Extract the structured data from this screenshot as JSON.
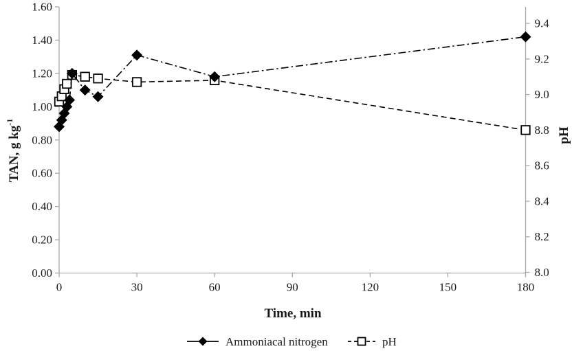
{
  "figure": {
    "background_color": "#ffffff",
    "text_color": "#1a1a1a",
    "axis_line_color": "#a8a8a8",
    "series_color": "#000000"
  },
  "chart_data": {
    "type": "line",
    "title": "",
    "grid": false,
    "legend_position": "bottom-center",
    "x_axis": {
      "label": "Time, min",
      "range": [
        0,
        180
      ],
      "ticks": [
        0,
        30,
        60,
        90,
        120,
        150,
        180
      ]
    },
    "y_left_axis": {
      "label": "TAN, g kg",
      "label_superscript": "-1",
      "range": [
        0,
        1.6
      ],
      "ticks": [
        "0.00",
        "0.20",
        "0.40",
        "0.60",
        "0.80",
        "1.00",
        "1.20",
        "1.40",
        "1.60"
      ]
    },
    "y_right_axis": {
      "label": "pH",
      "range": [
        8.0,
        9.4
      ],
      "ticks": [
        "8.0",
        "8.2",
        "8.4",
        "8.6",
        "8.8",
        "9.0",
        "9.2",
        "9.4"
      ]
    },
    "series": [
      {
        "name": "Ammoniacal nitrogen",
        "axis": "left",
        "marker": "filled-diamond",
        "line_style": "dash-dot",
        "color": "#000000",
        "x": [
          0,
          1,
          2,
          3,
          4,
          5,
          10,
          15,
          30,
          60,
          180
        ],
        "y": [
          0.88,
          0.92,
          0.96,
          1.0,
          1.04,
          1.2,
          1.1,
          1.06,
          1.31,
          1.18,
          1.42
        ]
      },
      {
        "name": "pH",
        "axis": "right",
        "marker": "open-square",
        "line_style": "dashed",
        "color": "#000000",
        "x": [
          0,
          1,
          2,
          3,
          5,
          10,
          15,
          30,
          60,
          180
        ],
        "y": [
          8.96,
          8.99,
          9.03,
          9.06,
          9.11,
          9.1,
          9.09,
          9.07,
          9.08,
          8.8
        ]
      }
    ]
  }
}
